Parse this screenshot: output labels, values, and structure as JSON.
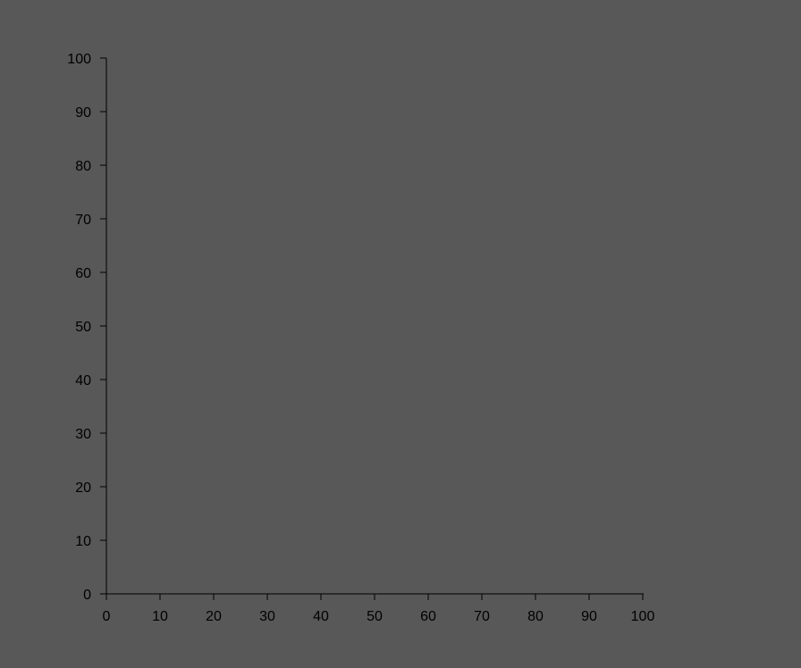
{
  "chart_data": {
    "type": "scatter",
    "title": "",
    "xlabel": "",
    "ylabel": "",
    "xlim": [
      0,
      100
    ],
    "ylim": [
      0,
      100
    ],
    "x_ticks": [
      0,
      10,
      20,
      30,
      40,
      50,
      60,
      70,
      80,
      90,
      100
    ],
    "y_ticks": [
      0,
      10,
      20,
      30,
      40,
      50,
      60,
      70,
      80,
      90,
      100
    ],
    "x_tick_labels": [
      "0",
      "10",
      "20",
      "30",
      "40",
      "50",
      "60",
      "70",
      "80",
      "90",
      "100"
    ],
    "y_tick_labels": [
      "0",
      "10",
      "20",
      "30",
      "40",
      "50",
      "60",
      "70",
      "80",
      "90",
      "100"
    ],
    "series": [],
    "grid": false,
    "colors": {
      "background": "#585858",
      "axis": "#000000",
      "text": "#000000"
    }
  }
}
